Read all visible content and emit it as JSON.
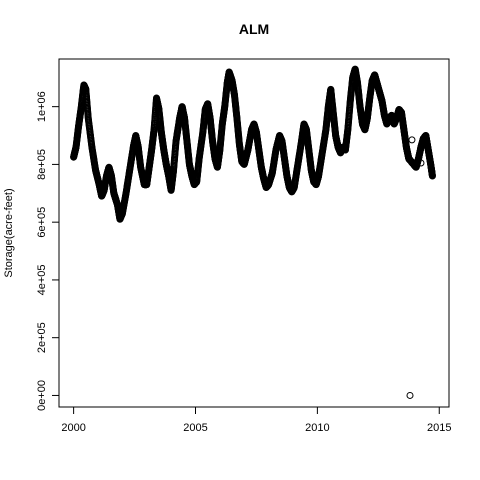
{
  "chart_data": {
    "type": "scatter",
    "title": "ALM",
    "xlabel": "",
    "ylabel": "Storage(acre-feet)",
    "xlim": [
      2000,
      2015
    ],
    "ylim": [
      0,
      1130000
    ],
    "x_ticks": [
      {
        "value": 2000,
        "label": "2000"
      },
      {
        "value": 2005,
        "label": "2005"
      },
      {
        "value": 2010,
        "label": "2010"
      },
      {
        "value": 2015,
        "label": "2015"
      }
    ],
    "y_ticks": [
      {
        "value": 0,
        "label": "0e+00"
      },
      {
        "value": 200000,
        "label": "2e+05"
      },
      {
        "value": 400000,
        "label": "4e+05"
      },
      {
        "value": 600000,
        "label": "6e+05"
      },
      {
        "value": 800000,
        "label": "8e+05"
      },
      {
        "value": 1000000,
        "label": "1e+06"
      }
    ],
    "grid": false,
    "marker": "open-circle",
    "series": [
      {
        "points": [
          [
            2000.0,
            825000
          ],
          [
            2000.1,
            860000
          ],
          [
            2000.2,
            930000
          ],
          [
            2000.3,
            990000
          ],
          [
            2000.42,
            1075000
          ],
          [
            2000.5,
            1060000
          ],
          [
            2000.6,
            960000
          ],
          [
            2000.75,
            860000
          ],
          [
            2000.9,
            780000
          ],
          [
            2001.05,
            730000
          ],
          [
            2001.15,
            690000
          ],
          [
            2001.25,
            710000
          ],
          [
            2001.35,
            760000
          ],
          [
            2001.45,
            790000
          ],
          [
            2001.55,
            760000
          ],
          [
            2001.65,
            700000
          ],
          [
            2001.8,
            660000
          ],
          [
            2001.9,
            610000
          ],
          [
            2002.0,
            630000
          ],
          [
            2002.15,
            700000
          ],
          [
            2002.3,
            780000
          ],
          [
            2002.45,
            860000
          ],
          [
            2002.55,
            900000
          ],
          [
            2002.65,
            860000
          ],
          [
            2002.75,
            790000
          ],
          [
            2002.9,
            730000
          ],
          [
            2003.0,
            730000
          ],
          [
            2003.1,
            790000
          ],
          [
            2003.2,
            850000
          ],
          [
            2003.3,
            920000
          ],
          [
            2003.4,
            1030000
          ],
          [
            2003.5,
            990000
          ],
          [
            2003.6,
            910000
          ],
          [
            2003.7,
            850000
          ],
          [
            2003.8,
            800000
          ],
          [
            2003.9,
            760000
          ],
          [
            2004.0,
            710000
          ],
          [
            2004.1,
            780000
          ],
          [
            2004.2,
            880000
          ],
          [
            2004.35,
            960000
          ],
          [
            2004.45,
            1000000
          ],
          [
            2004.55,
            960000
          ],
          [
            2004.65,
            880000
          ],
          [
            2004.75,
            800000
          ],
          [
            2004.85,
            760000
          ],
          [
            2004.95,
            730000
          ],
          [
            2005.05,
            740000
          ],
          [
            2005.15,
            820000
          ],
          [
            2005.3,
            910000
          ],
          [
            2005.4,
            990000
          ],
          [
            2005.5,
            1010000
          ],
          [
            2005.6,
            960000
          ],
          [
            2005.7,
            880000
          ],
          [
            2005.8,
            820000
          ],
          [
            2005.9,
            790000
          ],
          [
            2006.0,
            850000
          ],
          [
            2006.1,
            940000
          ],
          [
            2006.2,
            1000000
          ],
          [
            2006.3,
            1080000
          ],
          [
            2006.38,
            1120000
          ],
          [
            2006.5,
            1090000
          ],
          [
            2006.6,
            1040000
          ],
          [
            2006.7,
            960000
          ],
          [
            2006.8,
            870000
          ],
          [
            2006.9,
            810000
          ],
          [
            2007.0,
            800000
          ],
          [
            2007.15,
            850000
          ],
          [
            2007.3,
            920000
          ],
          [
            2007.4,
            940000
          ],
          [
            2007.5,
            910000
          ],
          [
            2007.6,
            850000
          ],
          [
            2007.7,
            790000
          ],
          [
            2007.8,
            750000
          ],
          [
            2007.9,
            720000
          ],
          [
            2008.0,
            730000
          ],
          [
            2008.15,
            770000
          ],
          [
            2008.3,
            850000
          ],
          [
            2008.45,
            900000
          ],
          [
            2008.55,
            880000
          ],
          [
            2008.65,
            820000
          ],
          [
            2008.75,
            760000
          ],
          [
            2008.85,
            720000
          ],
          [
            2008.95,
            705000
          ],
          [
            2009.05,
            720000
          ],
          [
            2009.2,
            800000
          ],
          [
            2009.35,
            880000
          ],
          [
            2009.45,
            940000
          ],
          [
            2009.55,
            920000
          ],
          [
            2009.65,
            850000
          ],
          [
            2009.75,
            780000
          ],
          [
            2009.85,
            740000
          ],
          [
            2009.95,
            730000
          ],
          [
            2010.05,
            760000
          ],
          [
            2010.2,
            840000
          ],
          [
            2010.35,
            920000
          ],
          [
            2010.45,
            1000000
          ],
          [
            2010.55,
            1060000
          ],
          [
            2010.65,
            980000
          ],
          [
            2010.75,
            900000
          ],
          [
            2010.85,
            860000
          ],
          [
            2010.95,
            840000
          ],
          [
            2011.05,
            860000
          ],
          [
            2011.15,
            850000
          ],
          [
            2011.25,
            920000
          ],
          [
            2011.35,
            1020000
          ],
          [
            2011.45,
            1100000
          ],
          [
            2011.55,
            1130000
          ],
          [
            2011.65,
            1080000
          ],
          [
            2011.75,
            1000000
          ],
          [
            2011.85,
            940000
          ],
          [
            2011.95,
            920000
          ],
          [
            2012.05,
            960000
          ],
          [
            2012.15,
            1030000
          ],
          [
            2012.25,
            1090000
          ],
          [
            2012.35,
            1110000
          ],
          [
            2012.45,
            1080000
          ],
          [
            2012.55,
            1050000
          ],
          [
            2012.65,
            1020000
          ],
          [
            2012.75,
            970000
          ],
          [
            2012.85,
            940000
          ],
          [
            2012.95,
            960000
          ],
          [
            2013.05,
            970000
          ],
          [
            2013.15,
            940000
          ],
          [
            2013.25,
            960000
          ],
          [
            2013.35,
            990000
          ],
          [
            2013.45,
            980000
          ],
          [
            2013.55,
            920000
          ],
          [
            2013.65,
            860000
          ],
          [
            2013.75,
            820000
          ],
          [
            2013.85,
            810000
          ],
          [
            2013.95,
            800000
          ],
          [
            2014.05,
            790000
          ],
          [
            2014.15,
            820000
          ],
          [
            2014.25,
            860000
          ],
          [
            2014.35,
            890000
          ],
          [
            2014.45,
            900000
          ],
          [
            2014.55,
            850000
          ],
          [
            2014.65,
            800000
          ],
          [
            2014.72,
            760000
          ]
        ],
        "outliers": [
          [
            2013.88,
            885000
          ],
          [
            2014.25,
            805000
          ],
          [
            2013.8,
            0
          ]
        ]
      }
    ]
  }
}
